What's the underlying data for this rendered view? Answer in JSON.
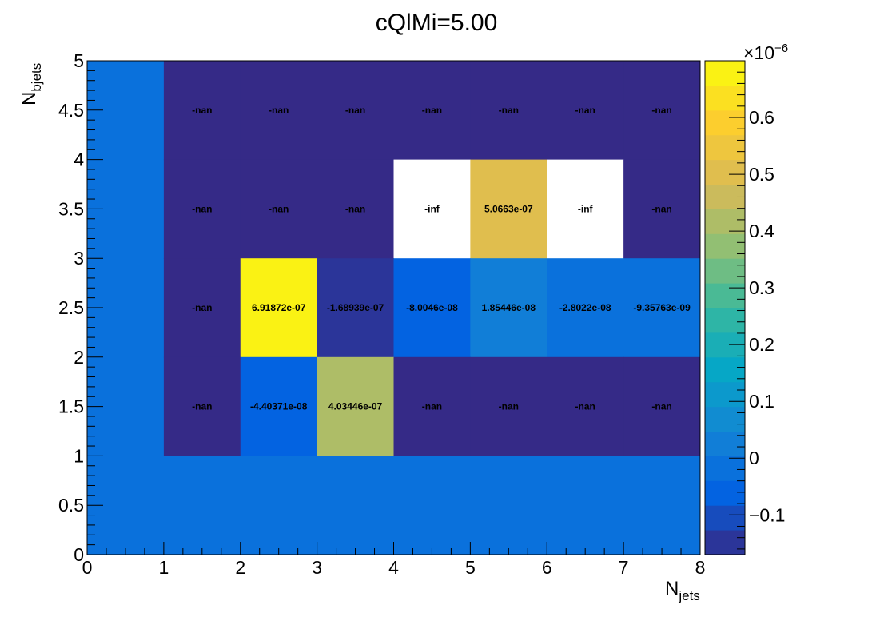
{
  "chart_data": {
    "type": "heatmap",
    "title": "cQlMi=5.00",
    "xlabel_main": "N",
    "xlabel_sub": "jets",
    "ylabel_main": "N",
    "ylabel_sub": "bjets",
    "xlim": [
      0,
      8
    ],
    "ylim": [
      0,
      5
    ],
    "x_bin_edges": [
      0,
      1,
      2,
      3,
      4,
      5,
      6,
      7,
      8
    ],
    "y_bin_edges": [
      0,
      1,
      2,
      3,
      4,
      5
    ],
    "x_tick_labels": [
      "0",
      "1",
      "2",
      "3",
      "4",
      "5",
      "6",
      "7",
      "8"
    ],
    "y_tick_labels": [
      "0",
      "0.5",
      "1",
      "1.5",
      "2",
      "2.5",
      "3",
      "3.5",
      "4",
      "4.5",
      "5"
    ],
    "y_tick_values": [
      0,
      0.5,
      1,
      1.5,
      2,
      2.5,
      3,
      3.5,
      4,
      4.5,
      5
    ],
    "colorbar": {
      "min": -1.7e-07,
      "max": 7e-07,
      "multiplier_base": "×10",
      "multiplier_exp": "−6",
      "tick_labels": [
        "−0.1",
        "0",
        "0.1",
        "0.2",
        "0.3",
        "0.4",
        "0.5",
        "0.6"
      ],
      "tick_values": [
        -0.1,
        0,
        0.1,
        0.2,
        0.3,
        0.4,
        0.5,
        0.6
      ],
      "n_levels": 20
    },
    "cells": [
      {
        "x": 1.5,
        "y": 4.5,
        "label": "-nan",
        "kind": "nan"
      },
      {
        "x": 2.5,
        "y": 4.5,
        "label": "-nan",
        "kind": "nan"
      },
      {
        "x": 3.5,
        "y": 4.5,
        "label": "-nan",
        "kind": "nan"
      },
      {
        "x": 4.5,
        "y": 4.5,
        "label": "-nan",
        "kind": "nan"
      },
      {
        "x": 5.5,
        "y": 4.5,
        "label": "-nan",
        "kind": "nan"
      },
      {
        "x": 6.5,
        "y": 4.5,
        "label": "-nan",
        "kind": "nan"
      },
      {
        "x": 7.5,
        "y": 4.5,
        "label": "-nan",
        "kind": "nan"
      },
      {
        "x": 1.5,
        "y": 3.5,
        "label": "-nan",
        "kind": "nan"
      },
      {
        "x": 2.5,
        "y": 3.5,
        "label": "-nan",
        "kind": "nan"
      },
      {
        "x": 3.5,
        "y": 3.5,
        "label": "-nan",
        "kind": "nan"
      },
      {
        "x": 4.5,
        "y": 3.5,
        "label": "-inf",
        "kind": "inf"
      },
      {
        "x": 5.5,
        "y": 3.5,
        "label": "5.0663e-07",
        "value": 5.0663e-07,
        "kind": "value"
      },
      {
        "x": 6.5,
        "y": 3.5,
        "label": "-inf",
        "kind": "inf"
      },
      {
        "x": 7.5,
        "y": 3.5,
        "label": "-nan",
        "kind": "nan"
      },
      {
        "x": 1.5,
        "y": 2.5,
        "label": "-nan",
        "kind": "nan"
      },
      {
        "x": 2.5,
        "y": 2.5,
        "label": "6.91872e-07",
        "value": 6.91872e-07,
        "kind": "value"
      },
      {
        "x": 3.5,
        "y": 2.5,
        "label": "-1.68939e-07",
        "value": -1.68939e-07,
        "kind": "value"
      },
      {
        "x": 4.5,
        "y": 2.5,
        "label": "-8.0046e-08",
        "value": -8.0046e-08,
        "kind": "value"
      },
      {
        "x": 5.5,
        "y": 2.5,
        "label": "1.85446e-08",
        "value": 1.85446e-08,
        "kind": "value"
      },
      {
        "x": 6.5,
        "y": 2.5,
        "label": "-2.8022e-08",
        "value": -2.8022e-08,
        "kind": "value"
      },
      {
        "x": 7.5,
        "y": 2.5,
        "label": "-9.35763e-09",
        "value": -9.35763e-09,
        "kind": "value"
      },
      {
        "x": 1.5,
        "y": 1.5,
        "label": "-nan",
        "kind": "nan"
      },
      {
        "x": 2.5,
        "y": 1.5,
        "label": "-4.40371e-08",
        "value": -4.40371e-08,
        "kind": "value"
      },
      {
        "x": 3.5,
        "y": 1.5,
        "label": "4.03446e-07",
        "value": 4.03446e-07,
        "kind": "value"
      },
      {
        "x": 4.5,
        "y": 1.5,
        "label": "-nan",
        "kind": "nan"
      },
      {
        "x": 5.5,
        "y": 1.5,
        "label": "-nan",
        "kind": "nan"
      },
      {
        "x": 6.5,
        "y": 1.5,
        "label": "-nan",
        "kind": "nan"
      },
      {
        "x": 7.5,
        "y": 1.5,
        "label": "-nan",
        "kind": "nan"
      }
    ]
  }
}
